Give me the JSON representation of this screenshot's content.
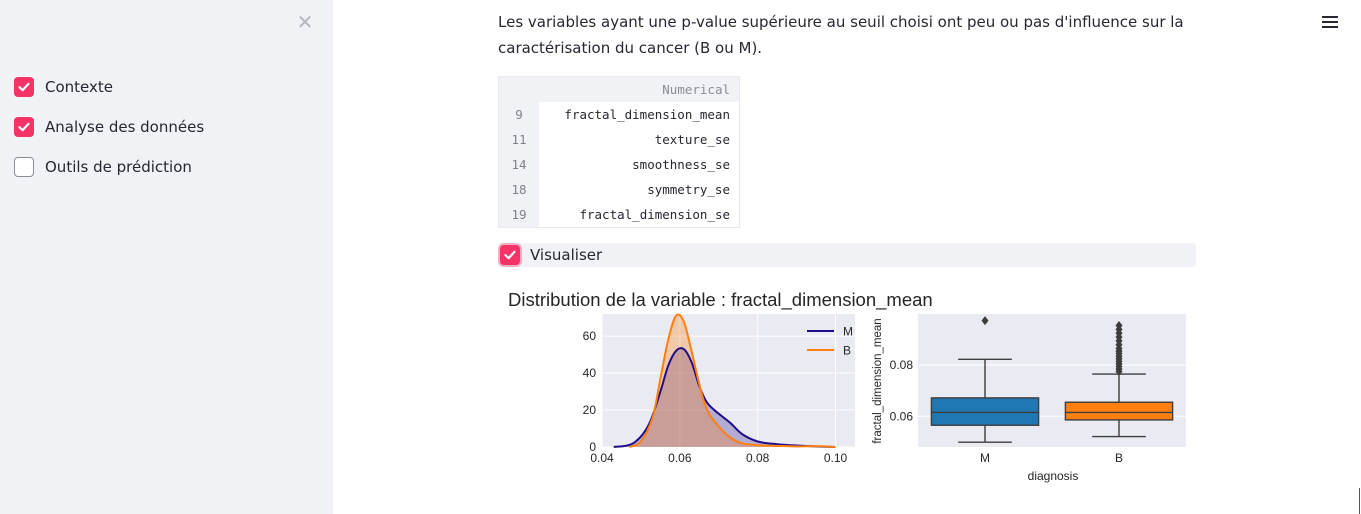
{
  "sidebar": {
    "close_icon": "close-icon",
    "items": [
      {
        "label": "Contexte",
        "checked": true
      },
      {
        "label": "Analyse des données",
        "checked": true
      },
      {
        "label": "Outils de prédiction",
        "checked": false
      }
    ]
  },
  "main": {
    "menu_icon": "hamburger-menu-icon",
    "intro_text": "Les variables ayant une p-value supérieure au seuil choisi ont peu ou pas d'influence sur la caractérisation du cancer (B ou M).",
    "dataframe": {
      "column": "Numerical",
      "rows": [
        {
          "index": "9",
          "value": "fractal_dimension_mean"
        },
        {
          "index": "11",
          "value": "texture_se"
        },
        {
          "index": "14",
          "value": "smoothness_se"
        },
        {
          "index": "18",
          "value": "symmetry_se"
        },
        {
          "index": "19",
          "value": "fractal_dimension_se"
        }
      ]
    },
    "visualize": {
      "label": "Visualiser",
      "checked": true
    }
  },
  "colors": {
    "accent": "#f63366",
    "series_M": "#1f0c8a",
    "series_B": "#ff7f0e",
    "box_M": "#1f77b4",
    "box_B": "#ff7f0e",
    "plot_bg": "#eaeaf2"
  },
  "chart_data": [
    {
      "type": "area",
      "title": "Distribution de la variable : fractal_dimension_mean",
      "xlabel": "",
      "ylabel": "",
      "xlim": [
        0.04,
        0.105
      ],
      "ylim": [
        0,
        72
      ],
      "xticks": [
        0.04,
        0.06,
        0.08,
        0.1
      ],
      "xtick_labels": [
        "0.04",
        "0.06",
        "0.08",
        "0.10"
      ],
      "yticks": [
        0,
        20,
        40,
        60
      ],
      "ytick_labels": [
        "0",
        "20",
        "40",
        "60"
      ],
      "legend_position": "top-right",
      "grid": true,
      "series": [
        {
          "name": "M",
          "x": [
            0.043,
            0.048,
            0.052,
            0.055,
            0.057,
            0.059,
            0.061,
            0.063,
            0.065,
            0.067,
            0.07,
            0.073,
            0.076,
            0.08,
            0.085,
            0.09,
            0.095,
            0.1
          ],
          "values": [
            0,
            2,
            12,
            30,
            44,
            52,
            53,
            46,
            33,
            24,
            18,
            13,
            7,
            3,
            1.5,
            0.8,
            0.3,
            0
          ]
        },
        {
          "name": "B",
          "x": [
            0.047,
            0.05,
            0.053,
            0.055,
            0.057,
            0.059,
            0.061,
            0.063,
            0.065,
            0.067,
            0.07,
            0.073,
            0.076,
            0.08,
            0.085,
            0.09,
            0.095,
            0.1
          ],
          "values": [
            0,
            3,
            16,
            37,
            58,
            71,
            68,
            52,
            34,
            20,
            11,
            5,
            2,
            1,
            0.6,
            0.3,
            0.5,
            0
          ]
        }
      ]
    },
    {
      "type": "box",
      "xlabel": "diagnosis",
      "ylabel": "fractal_dimension_mean",
      "ylim": [
        0.048,
        0.1
      ],
      "yticks": [
        0.06,
        0.08
      ],
      "ytick_labels": [
        "0.06",
        "0.08"
      ],
      "categories": [
        "M",
        "B"
      ],
      "boxes": [
        {
          "name": "M",
          "whisker_low": 0.0499,
          "q1": 0.0565,
          "median": 0.0615,
          "q3": 0.0672,
          "whisker_high": 0.0823,
          "outliers": [
            0.0974
          ]
        },
        {
          "name": "B",
          "whisker_low": 0.0521,
          "q1": 0.0586,
          "median": 0.0615,
          "q3": 0.0655,
          "whisker_high": 0.0765,
          "outliers": [
            0.0775,
            0.0785,
            0.0795,
            0.0805,
            0.0815,
            0.0825,
            0.0835,
            0.0845,
            0.0855,
            0.0865,
            0.088,
            0.0895,
            0.091,
            0.0925,
            0.094,
            0.0955
          ]
        }
      ]
    }
  ]
}
